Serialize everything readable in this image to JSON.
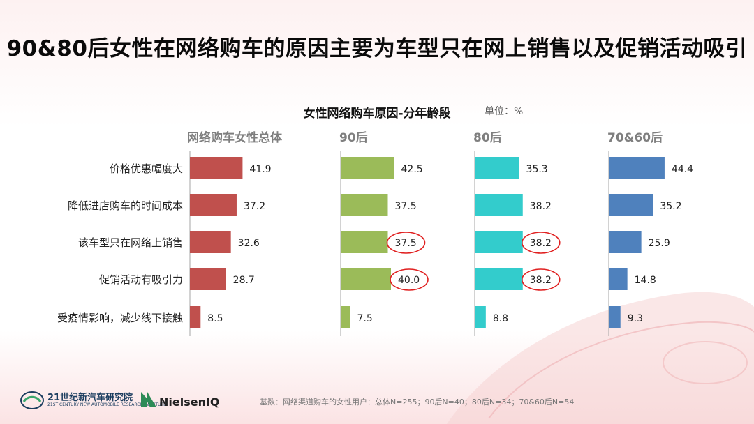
{
  "page": {
    "title": "90&80后女性在网络购车的原因主要为车型只在网上销售以及促销活动吸引"
  },
  "chart_data": {
    "type": "bar",
    "orientation": "horizontal",
    "title": "女性网络购车原因-分年龄段",
    "unit": "单位：%",
    "categories": [
      "价格优惠幅度大",
      "降低进店购车的时间成本",
      "该车型只在网络上销售",
      "促销活动有吸引力",
      "受疫情影响，减少线下接触"
    ],
    "series": [
      {
        "name": "网络购车女性总体",
        "values": [
          41.9,
          37.2,
          32.6,
          28.7,
          8.5
        ],
        "color": "#c0504d",
        "circled": []
      },
      {
        "name": "90后",
        "values": [
          42.5,
          37.5,
          37.5,
          40.0,
          7.5
        ],
        "color": "#9bbb59",
        "circled": [
          2,
          3
        ]
      },
      {
        "name": "80后",
        "values": [
          35.3,
          38.2,
          38.2,
          38.2,
          8.8
        ],
        "color": "#33cccc",
        "circled": [
          2,
          3
        ]
      },
      {
        "name": "70&60后",
        "values": [
          44.4,
          35.2,
          25.9,
          14.8,
          9.3
        ],
        "color": "#4f81bd",
        "circled": []
      }
    ],
    "value_labels": [
      [
        "41.9",
        "37.2",
        "32.6",
        "28.7",
        "8.5"
      ],
      [
        "42.5",
        "37.5",
        "37.5",
        "40.0",
        "7.5"
      ],
      [
        "35.3",
        "38.2",
        "38.2",
        "38.2",
        "8.8"
      ],
      [
        "44.4",
        "35.2",
        "25.9",
        "14.8",
        "9.3"
      ]
    ],
    "highlight_color": "#e02020"
  },
  "footer": {
    "note": "基数：网络渠道购车的女性用户：总体N=255；90后N=40；80后N=34；70&60后N=54"
  },
  "logos": {
    "institute_name": "21世纪新汽车研究院",
    "institute_sub": "21ST CENTURY NEW AUTOMOBILE RESEARCH INSTITUTE",
    "nielsen": "NielsenIQ"
  }
}
